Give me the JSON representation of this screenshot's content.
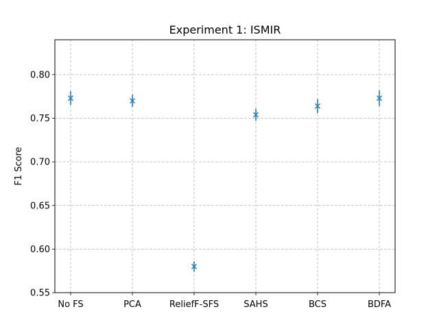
{
  "chart_data": {
    "type": "scatter",
    "title": "Experiment 1: ISMIR",
    "xlabel": "",
    "ylabel": "F1 Score",
    "categories": [
      "No FS",
      "PCA",
      "ReliefF-SFS",
      "SAHS",
      "BCS",
      "BDFA"
    ],
    "series": [
      {
        "values": [
          0.773,
          0.77,
          0.58,
          0.754,
          0.764,
          0.773
        ],
        "errors": [
          0.008,
          0.007,
          0.006,
          0.007,
          0.008,
          0.009
        ],
        "color": "#1f77b4",
        "marker": "x"
      }
    ],
    "ylim": [
      0.55,
      0.84
    ],
    "yticks": [
      "0.55",
      "0.60",
      "0.65",
      "0.70",
      "0.75",
      "0.80"
    ],
    "grid": true
  }
}
